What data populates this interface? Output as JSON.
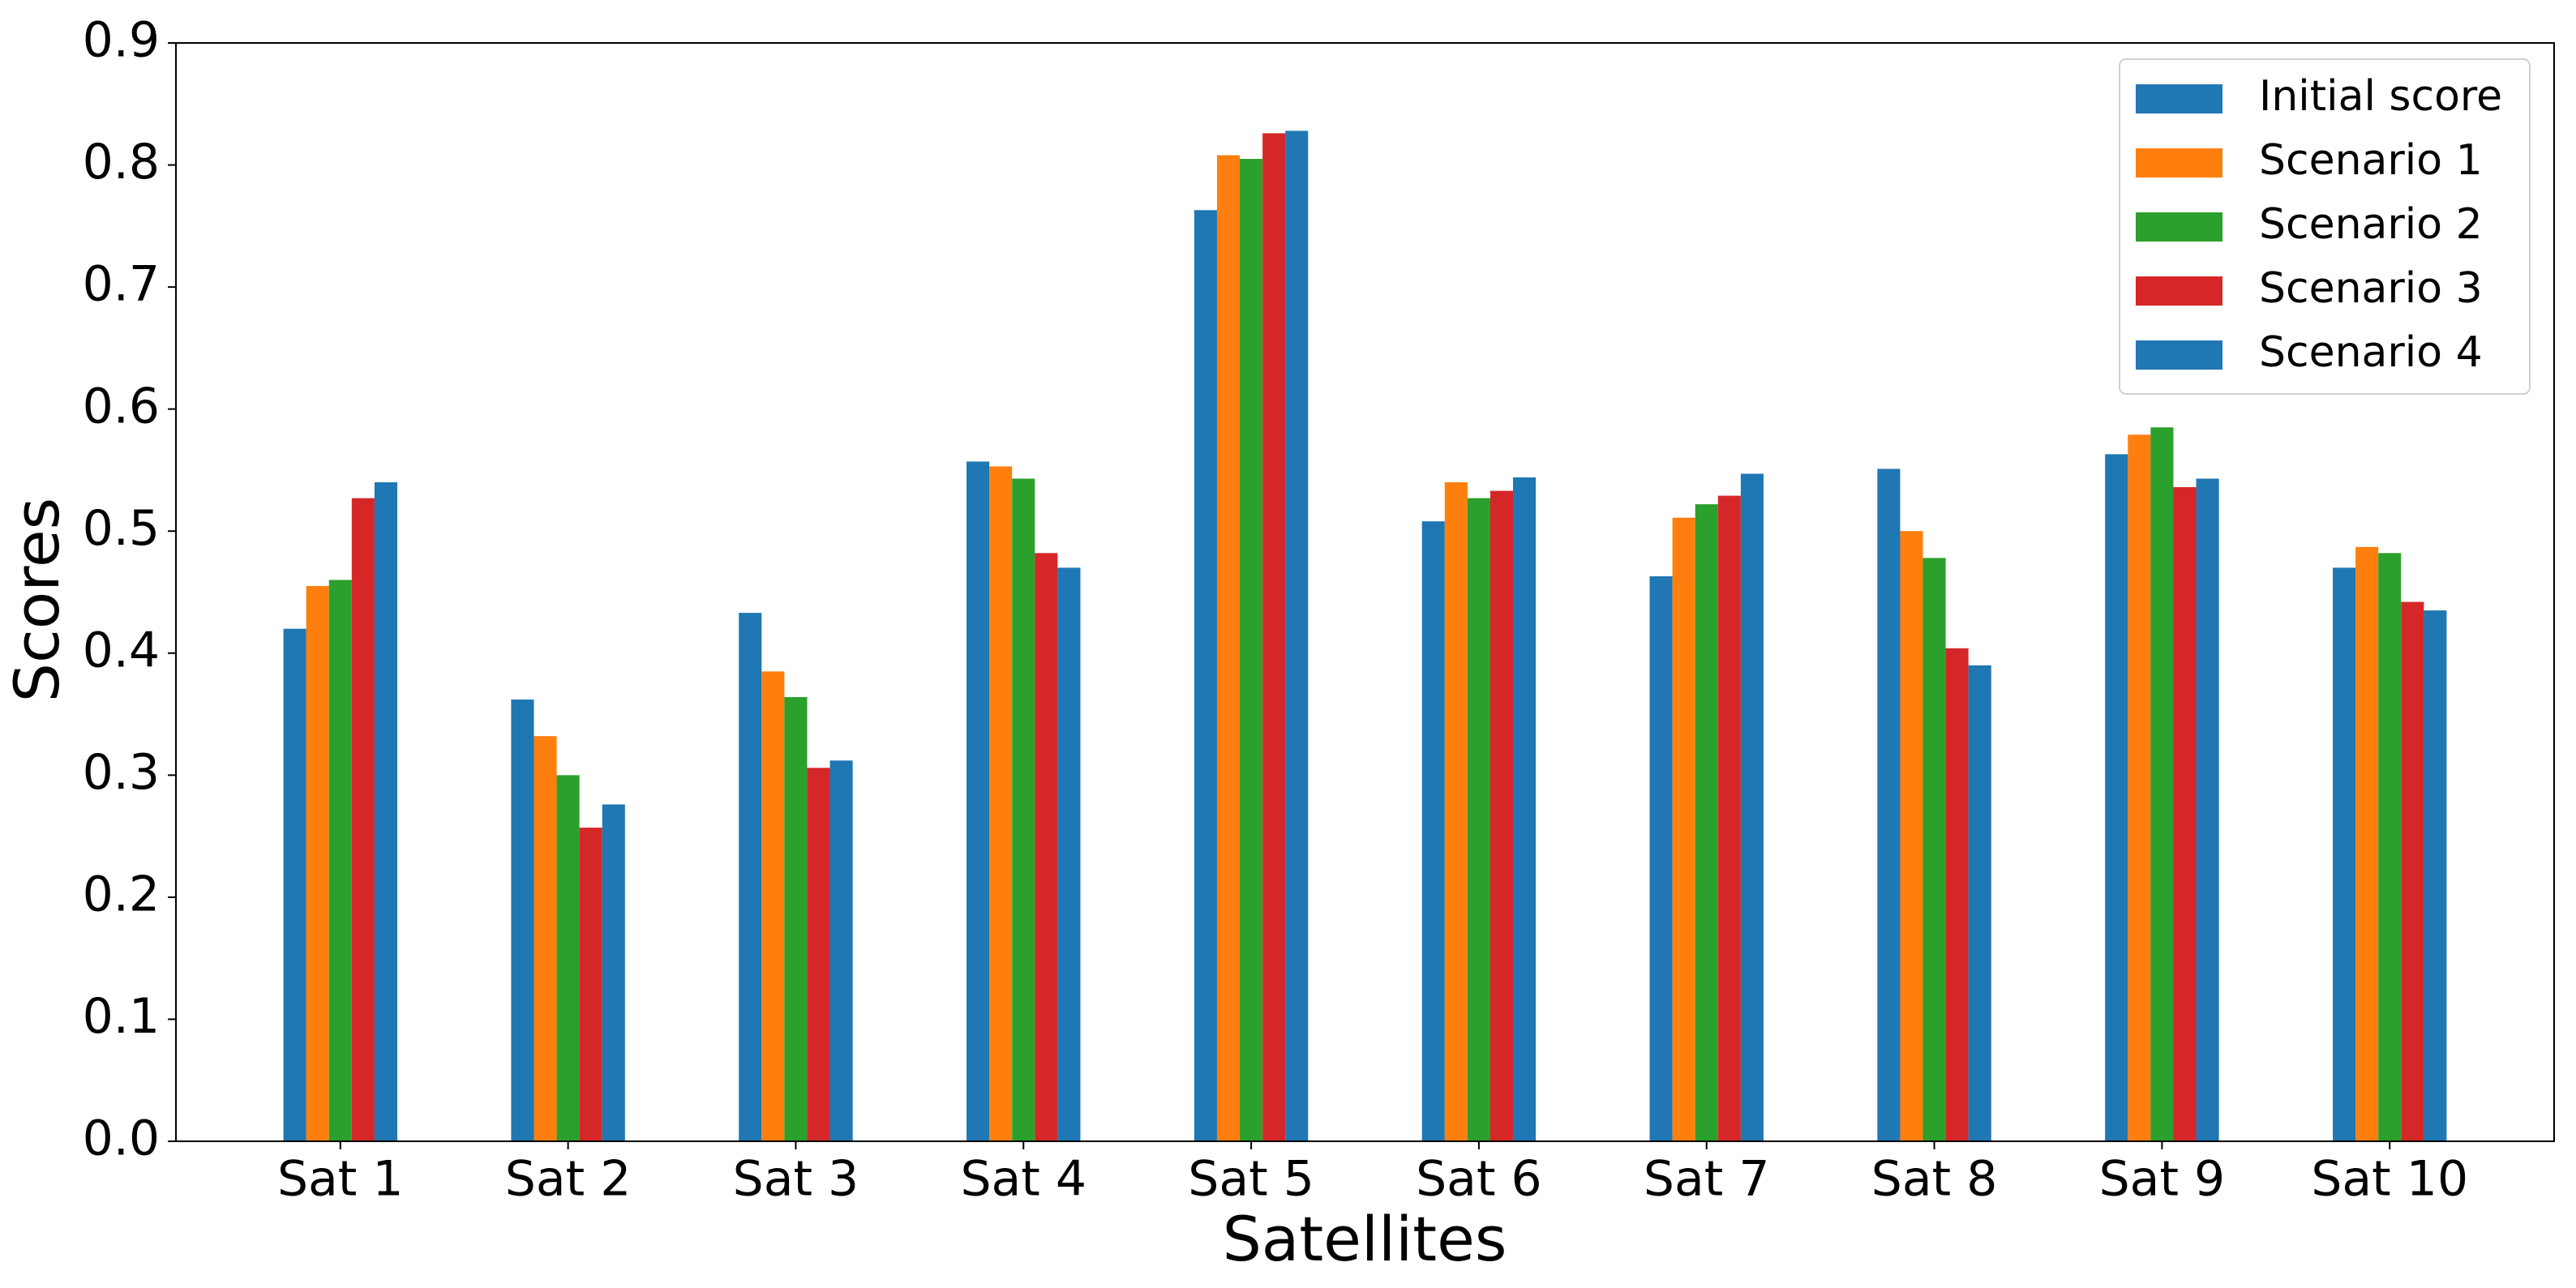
{
  "chart_data": {
    "type": "bar",
    "x_label": "Satellites",
    "y_label": "Scores",
    "categories": [
      "Sat 1",
      "Sat 2",
      "Sat 3",
      "Sat 4",
      "Sat 5",
      "Sat 6",
      "Sat 7",
      "Sat 8",
      "Sat 9",
      "Sat 10"
    ],
    "series": [
      {
        "name": "Initial score",
        "color": "#1f77b4",
        "values": [
          0.42,
          0.362,
          0.433,
          0.557,
          0.763,
          0.508,
          0.463,
          0.551,
          0.563,
          0.47
        ]
      },
      {
        "name": "Scenario 1",
        "color": "#ff7f0e",
        "values": [
          0.455,
          0.332,
          0.385,
          0.553,
          0.808,
          0.54,
          0.511,
          0.5,
          0.579,
          0.487
        ]
      },
      {
        "name": "Scenario 2",
        "color": "#2ca02c",
        "values": [
          0.46,
          0.3,
          0.364,
          0.543,
          0.805,
          0.527,
          0.522,
          0.478,
          0.585,
          0.482
        ]
      },
      {
        "name": "Scenario 3",
        "color": "#d62728",
        "values": [
          0.527,
          0.257,
          0.306,
          0.482,
          0.826,
          0.533,
          0.529,
          0.404,
          0.536,
          0.442
        ]
      },
      {
        "name": "Scenario 4",
        "color": "#1f77b4",
        "values": [
          0.54,
          0.276,
          0.312,
          0.47,
          0.828,
          0.544,
          0.547,
          0.39,
          0.543,
          0.435
        ]
      }
    ],
    "ylim": [
      0,
      0.9
    ],
    "yticks": [
      {
        "value": 0,
        "label": "0.0"
      },
      0.1,
      0.2,
      0.3,
      0.4,
      0.5,
      0.6,
      0.7,
      0.8,
      0.9
    ],
    "legend": "upper right",
    "grid": false
  }
}
